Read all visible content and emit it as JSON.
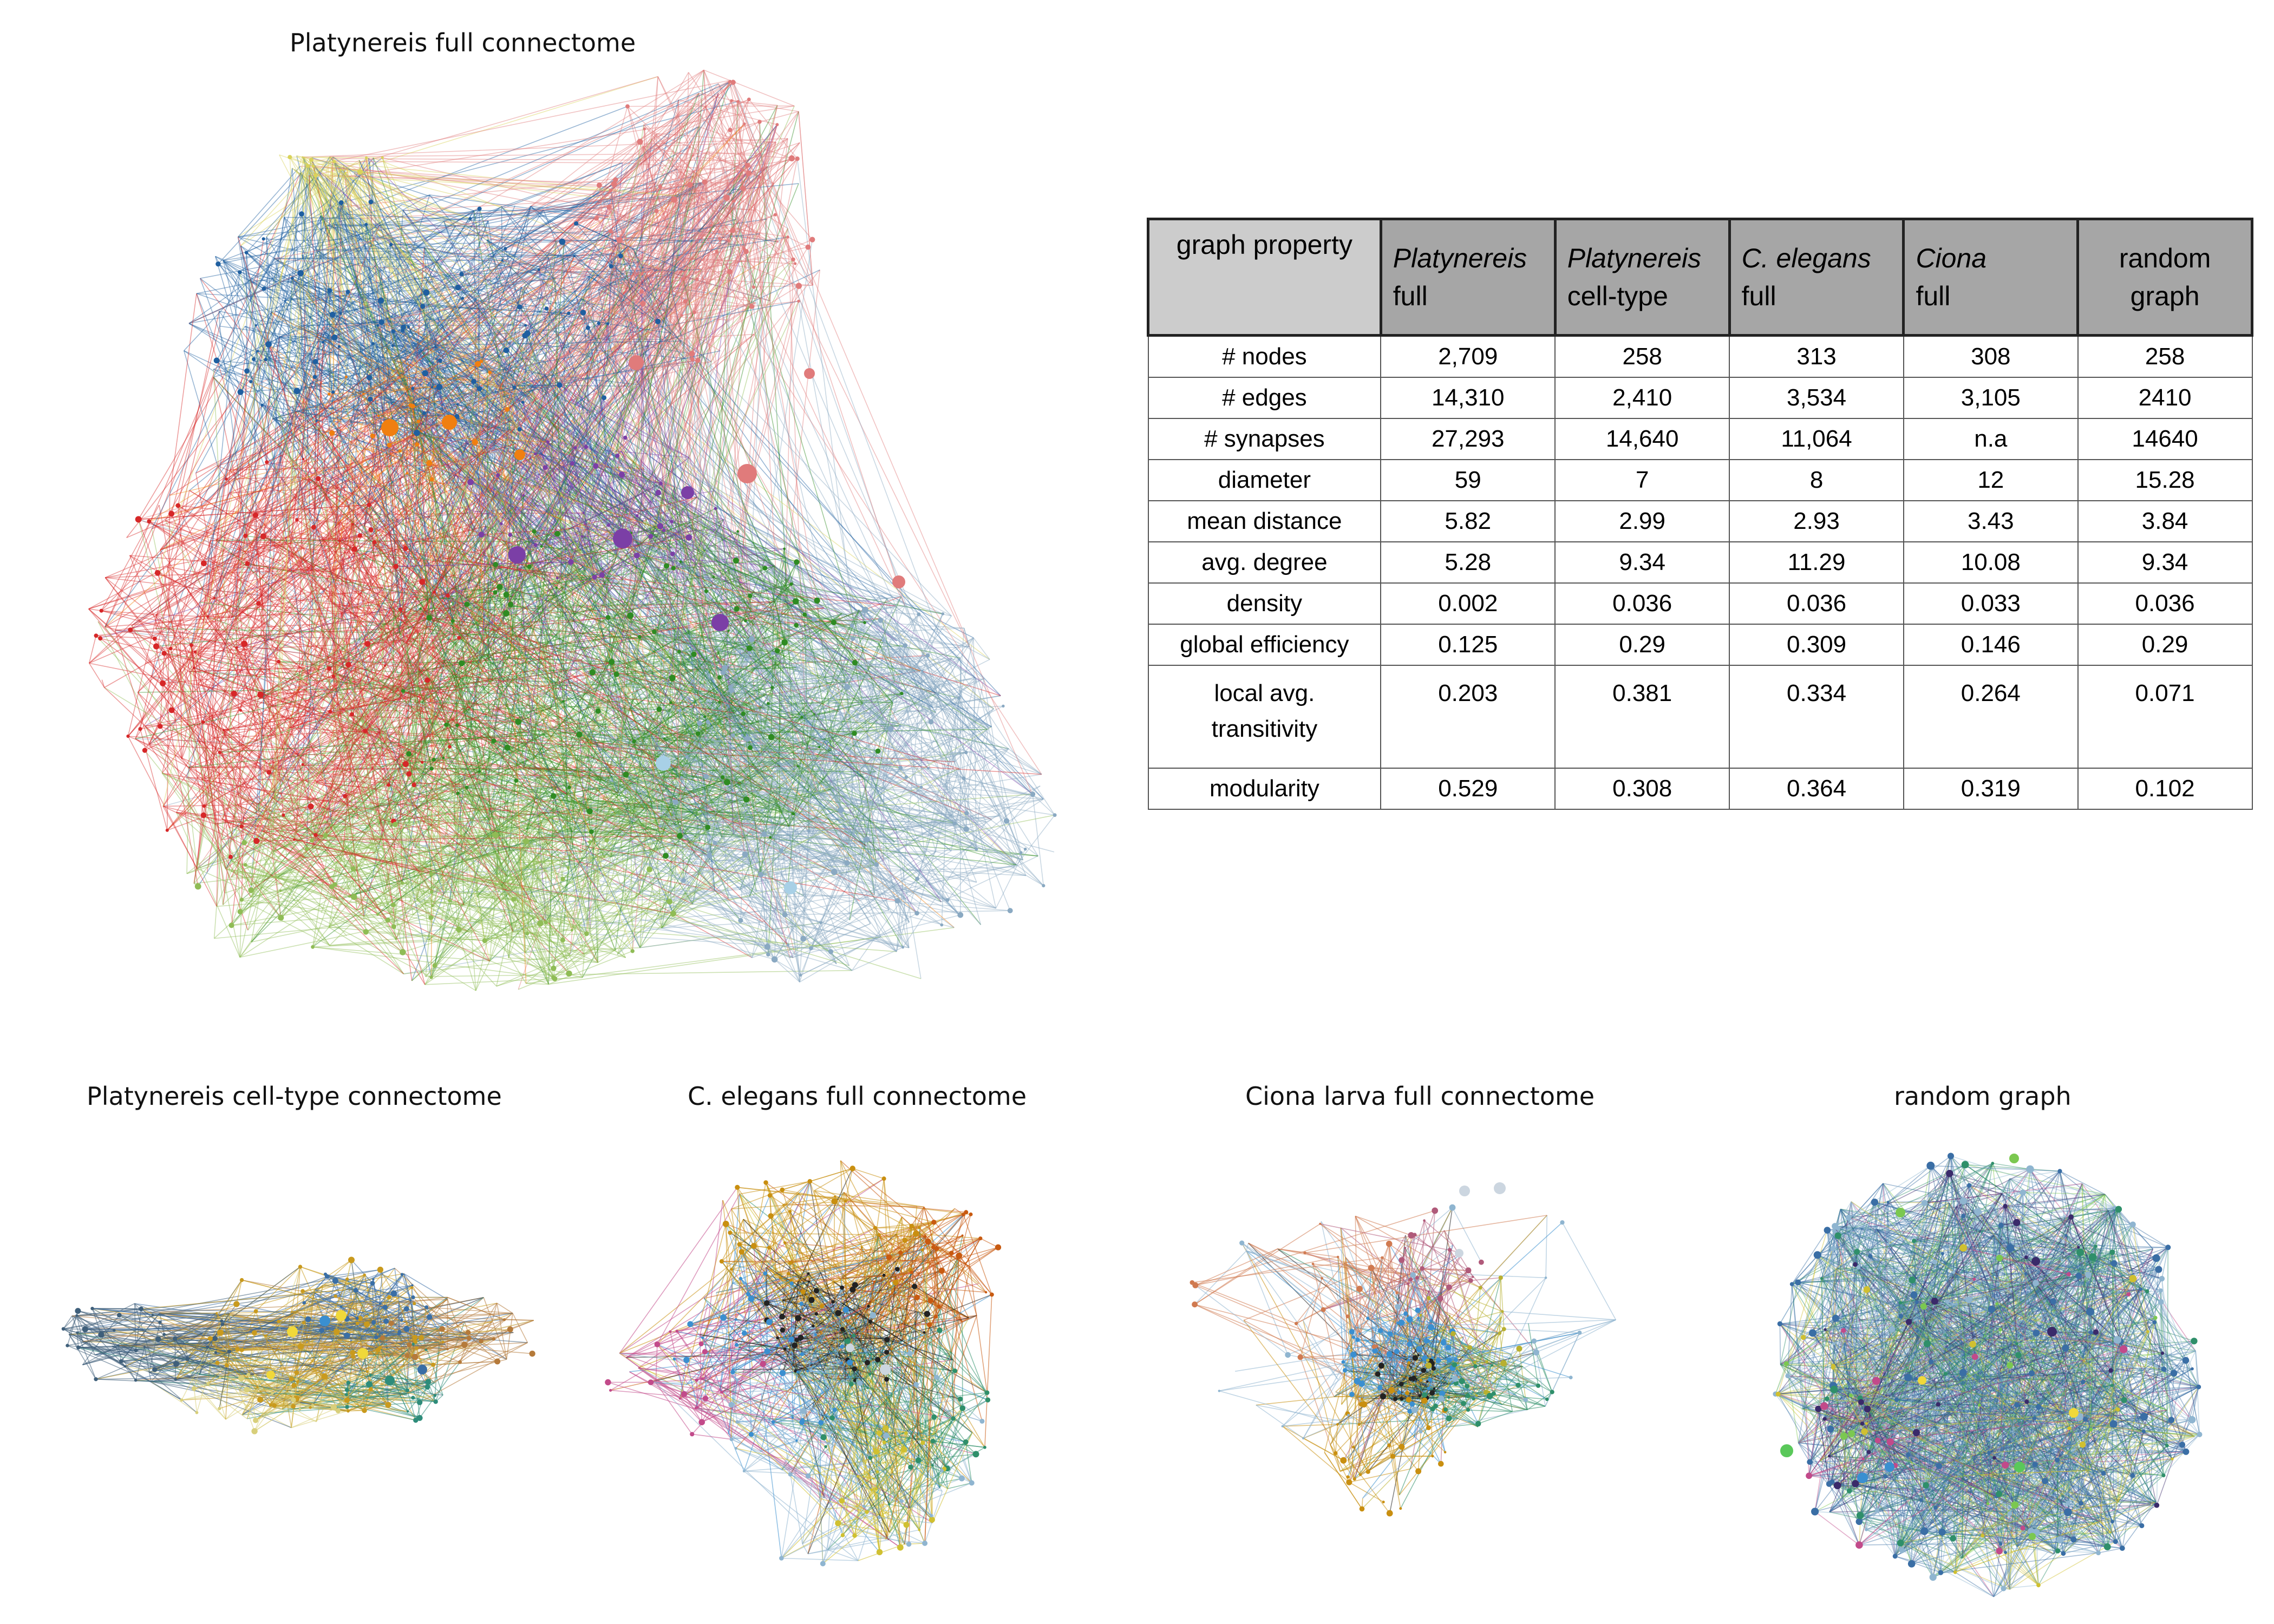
{
  "panels": {
    "main": {
      "title": "Platynereis full connectome"
    },
    "celltype": {
      "title": "Platynereis cell-type connectome"
    },
    "elegans": {
      "title": "C. elegans full connectome"
    },
    "ciona": {
      "title": "Ciona larva full connectome"
    },
    "random": {
      "title": "random graph"
    }
  },
  "table": {
    "header": {
      "property": "graph property",
      "columns": [
        {
          "italic": "Platynereis",
          "rest": "full"
        },
        {
          "italic": "Platynereis",
          "rest": "cell-type"
        },
        {
          "italic": "C. elegans",
          "rest": "full"
        },
        {
          "italic": "Ciona",
          "rest": "full"
        },
        {
          "italic": "",
          "rest": "random graph"
        }
      ]
    },
    "rows": [
      {
        "label": "# nodes",
        "values": [
          "2,709",
          "258",
          "313",
          "308",
          "258"
        ]
      },
      {
        "label": "# edges",
        "values": [
          "14,310",
          "2,410",
          "3,534",
          "3,105",
          "2410"
        ]
      },
      {
        "label": "# synapses",
        "values": [
          "27,293",
          "14,640",
          "11,064",
          "n.a",
          "14640"
        ]
      },
      {
        "label": "diameter",
        "values": [
          "59",
          "7",
          "8",
          "12",
          "15.28"
        ]
      },
      {
        "label": "mean distance",
        "values": [
          "5.82",
          "2.99",
          "2.93",
          "3.43",
          "3.84"
        ]
      },
      {
        "label": "avg. degree",
        "values": [
          "5.28",
          "9.34",
          "11.29",
          "10.08",
          "9.34"
        ]
      },
      {
        "label": "density",
        "values": [
          "0.002",
          "0.036",
          "0.036",
          "0.033",
          "0.036"
        ]
      },
      {
        "label": "global efficiency",
        "values": [
          "0.125",
          "0.29",
          "0.309",
          "0.146",
          "0.29"
        ]
      },
      {
        "label": "local avg. transitivity",
        "values": [
          "0.203",
          "0.381",
          "0.334",
          "0.264",
          "0.071"
        ]
      },
      {
        "label": "modularity",
        "values": [
          "0.529",
          "0.308",
          "0.364",
          "0.319",
          "0.102"
        ]
      }
    ]
  },
  "colors": {
    "red": "#d62728",
    "pink": "#e07b7b",
    "blue": "#1f5fa0",
    "orange": "#f07f10",
    "purple": "#7b3fa6",
    "green": "#2e8b22",
    "lightgreen": "#8fbc55",
    "grayblue": "#8aa9c2",
    "yellow": "#d9d35a"
  }
}
